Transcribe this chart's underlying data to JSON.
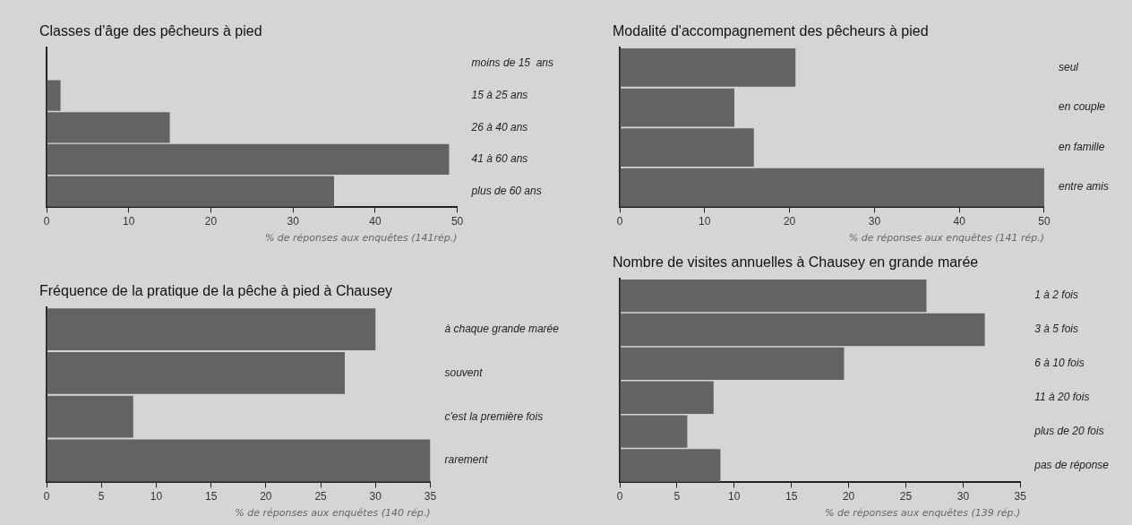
{
  "chart_data": [
    {
      "type": "bar",
      "orientation": "horizontal",
      "title": "Classes d'âge des pêcheurs à pied",
      "xlabel": "% de réponses aux enquêtes (141rép.)",
      "categories": [
        "moins de 15  ans",
        "15 à 25 ans",
        "26 à 40 ans",
        "41 à 60 ans",
        "plus de 60 ans"
      ],
      "values": [
        0,
        1.7,
        15,
        49,
        35
      ],
      "color": "#636363",
      "xlim": [
        0,
        50
      ],
      "xticks": [
        0,
        10,
        20,
        30,
        40,
        50
      ],
      "grid": false
    },
    {
      "type": "bar",
      "orientation": "horizontal",
      "title": "Modalité d'accompagnement des pêcheurs à pied",
      "xlabel": "% de réponses aux enquêtes (141 rép.)",
      "categories": [
        "seul",
        "en couple",
        "en famille",
        "entre amis"
      ],
      "values": [
        20.7,
        13.5,
        15.8,
        50
      ],
      "color": "#636363",
      "xlim": [
        0,
        50
      ],
      "xticks": [
        0,
        10,
        20,
        30,
        40,
        50
      ],
      "grid": false
    },
    {
      "type": "bar",
      "orientation": "horizontal",
      "title": "Fréquence de la pratique de la pêche à pied à Chausey",
      "xlabel": "% de réponses aux enquêtes (140 rép.)",
      "categories": [
        "à chaque grande marée",
        "souvent",
        "c'est la première fois",
        "rarement"
      ],
      "values": [
        30,
        27.2,
        7.9,
        35
      ],
      "color": "#636363",
      "xlim": [
        0,
        35
      ],
      "xticks": [
        0,
        5,
        10,
        15,
        20,
        25,
        30,
        35
      ],
      "grid": false
    },
    {
      "type": "bar",
      "orientation": "horizontal",
      "title": "Nombre de visites annuelles à Chausey en grande marée",
      "xlabel": "% de réponses aux enquêtes (139 rép.)",
      "categories": [
        "1 à 2 fois",
        "3 à 5 fois",
        "6 à 10 fois",
        "11 à 20 fois",
        "plus de 20 fois",
        "pas de réponse"
      ],
      "values": [
        26.8,
        31.9,
        19.6,
        8.2,
        5.9,
        8.8
      ],
      "color": "#636363",
      "xlim": [
        0,
        35
      ],
      "xticks": [
        0,
        5,
        10,
        15,
        20,
        25,
        30,
        35
      ],
      "grid": false
    }
  ]
}
